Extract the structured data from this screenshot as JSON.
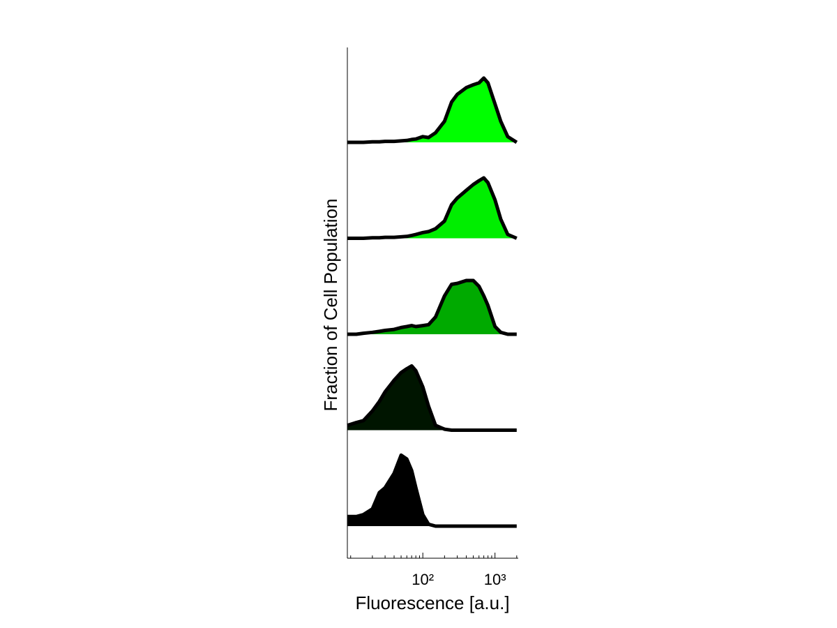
{
  "chart_data": {
    "type": "ridgeline",
    "xlabel": "Fluorescence [a.u.]",
    "ylabel": "Fraction of Cell Population",
    "xscale": "log",
    "xlim": [
      9,
      2100
    ],
    "ylim": [
      0,
      1
    ],
    "xticks": [
      {
        "value": 100,
        "label": "10²"
      },
      {
        "value": 1000,
        "label": "10³"
      }
    ],
    "xminorticks": [
      10,
      20,
      30,
      40,
      50,
      60,
      70,
      80,
      90,
      200,
      300,
      400,
      500,
      600,
      700,
      800,
      900,
      2000
    ],
    "x": [
      9,
      12,
      15,
      20,
      25,
      30,
      40,
      50,
      60,
      70,
      80,
      100,
      120,
      150,
      200,
      250,
      300,
      400,
      500,
      600,
      700,
      800,
      1000,
      1200,
      1500,
      2000
    ],
    "series": [
      {
        "color": "#00ff00",
        "values": [
          0,
          0,
          0,
          0.005,
          0.005,
          0.01,
          0.01,
          0.015,
          0.02,
          0.03,
          0.035,
          0.06,
          0.05,
          0.1,
          0.22,
          0.42,
          0.5,
          0.57,
          0.6,
          0.62,
          0.67,
          0.62,
          0.4,
          0.22,
          0.06,
          0
        ]
      },
      {
        "color": "#00ee00",
        "values": [
          0,
          0,
          0,
          0.005,
          0.005,
          0.01,
          0.01,
          0.015,
          0.02,
          0.03,
          0.04,
          0.06,
          0.07,
          0.1,
          0.18,
          0.35,
          0.42,
          0.5,
          0.56,
          0.6,
          0.63,
          0.58,
          0.4,
          0.2,
          0.04,
          0
        ]
      },
      {
        "color": "#00aa00",
        "values": [
          0,
          0,
          0.01,
          0.02,
          0.03,
          0.04,
          0.05,
          0.07,
          0.08,
          0.09,
          0.08,
          0.09,
          0.1,
          0.18,
          0.4,
          0.52,
          0.53,
          0.56,
          0.56,
          0.5,
          0.4,
          0.3,
          0.08,
          0.02,
          0,
          0
        ]
      },
      {
        "color": "#001500",
        "values": [
          0.05,
          0.08,
          0.1,
          0.2,
          0.3,
          0.4,
          0.52,
          0.6,
          0.64,
          0.67,
          0.62,
          0.45,
          0.25,
          0.05,
          0.01,
          0,
          0,
          0,
          0,
          0,
          0,
          0,
          0,
          0,
          0,
          0
        ]
      },
      {
        "color": "#000000",
        "values": [
          0.1,
          0.1,
          0.12,
          0.18,
          0.35,
          0.4,
          0.55,
          0.74,
          0.7,
          0.58,
          0.4,
          0.12,
          0.02,
          0,
          0,
          0,
          0,
          0,
          0,
          0,
          0,
          0,
          0,
          0,
          0,
          0
        ]
      }
    ]
  }
}
